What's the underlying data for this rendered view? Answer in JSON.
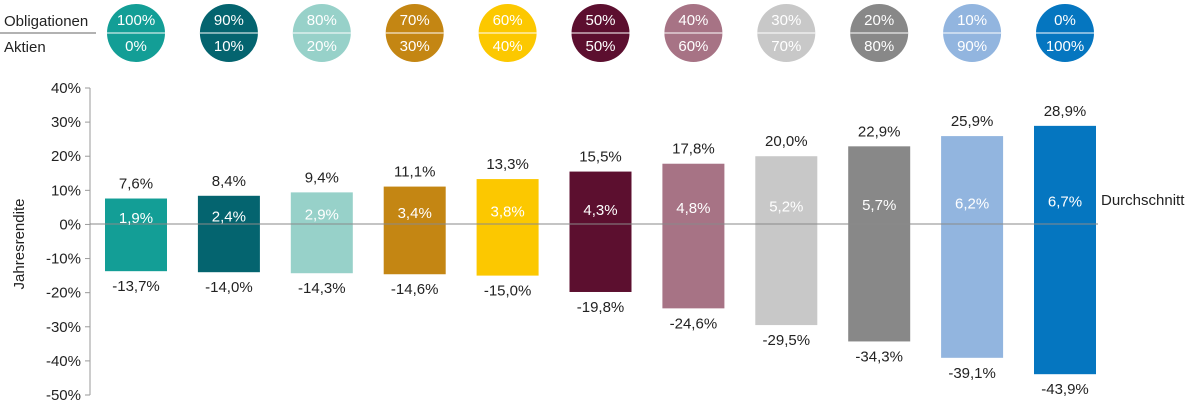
{
  "chart_data": {
    "type": "bar",
    "header_labels": {
      "bonds": "Obligationen",
      "stocks": "Aktien"
    },
    "allocations": [
      {
        "bonds": "100%",
        "stocks": "0%"
      },
      {
        "bonds": "90%",
        "stocks": "10%"
      },
      {
        "bonds": "80%",
        "stocks": "20%"
      },
      {
        "bonds": "70%",
        "stocks": "30%"
      },
      {
        "bonds": "60%",
        "stocks": "40%"
      },
      {
        "bonds": "50%",
        "stocks": "50%"
      },
      {
        "bonds": "40%",
        "stocks": "60%"
      },
      {
        "bonds": "30%",
        "stocks": "70%"
      },
      {
        "bonds": "20%",
        "stocks": "80%"
      },
      {
        "bonds": "10%",
        "stocks": "90%"
      },
      {
        "bonds": "0%",
        "stocks": "100%"
      }
    ],
    "colors": [
      "#139e96",
      "#04646f",
      "#97d1c9",
      "#c48613",
      "#fcc800",
      "#5c0f2f",
      "#a77385",
      "#c8c8c8",
      "#888888",
      "#92b5df",
      "#0576c0"
    ],
    "max": [
      7.6,
      8.4,
      9.4,
      11.1,
      13.3,
      15.5,
      17.8,
      20.0,
      22.9,
      25.9,
      28.9
    ],
    "avg": [
      1.9,
      2.4,
      2.9,
      3.4,
      3.8,
      4.3,
      4.8,
      5.2,
      5.7,
      6.2,
      6.7
    ],
    "min": [
      -13.7,
      -14.0,
      -14.3,
      -14.6,
      -15.0,
      -19.8,
      -24.6,
      -29.5,
      -34.3,
      -39.1,
      -43.9
    ],
    "max_labels": [
      "7,6%",
      "8,4%",
      "9,4%",
      "11,1%",
      "13,3%",
      "15,5%",
      "17,8%",
      "20,0%",
      "22,9%",
      "25,9%",
      "28,9%"
    ],
    "avg_labels": [
      "1,9%",
      "2,4%",
      "2,9%",
      "3,4%",
      "3,8%",
      "4,3%",
      "4,8%",
      "5,2%",
      "5,7%",
      "6,2%",
      "6,7%"
    ],
    "min_labels": [
      "-13,7%",
      "-14,0%",
      "-14,3%",
      "-14,6%",
      "-15,0%",
      "-19,8%",
      "-24,6%",
      "-29,5%",
      "-34,3%",
      "-39,1%",
      "-43,9%"
    ],
    "ylabel": "Jahresrendite",
    "avg_line_label": "Durchschnitt",
    "ylim": [
      -50,
      40
    ],
    "yticks": [
      40,
      30,
      20,
      10,
      0,
      -10,
      -20,
      -30,
      -40,
      -50
    ],
    "ytick_labels": [
      "40%",
      "30%",
      "20%",
      "10%",
      "0%",
      "-10%",
      "-20%",
      "-30%",
      "-40%",
      "-50%"
    ]
  }
}
